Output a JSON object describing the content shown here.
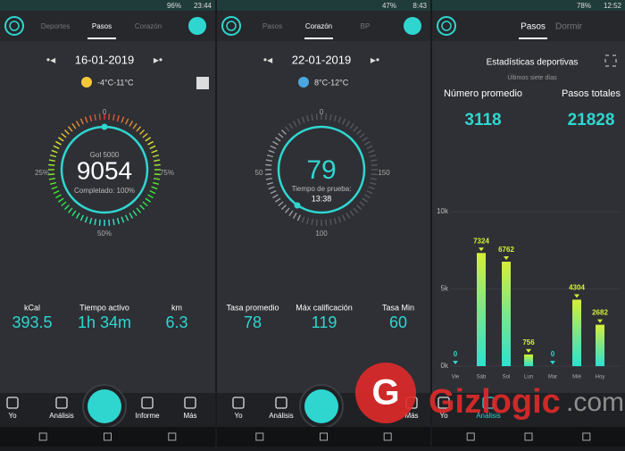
{
  "screens": [
    {
      "status": {
        "battery": "96%",
        "time": "23:44"
      },
      "tabs": [
        "Deportes",
        "Pasos",
        "Corazón"
      ],
      "date": "16-01-2019",
      "weather": "-4°C-11°C",
      "dial": {
        "labels": [
          "0",
          "25%",
          "75%",
          "50%"
        ],
        "top": "Gol 5000",
        "value": "9054",
        "bottom": "Completado: 100%"
      },
      "stats": [
        {
          "label": "kCal",
          "value": "393.5"
        },
        {
          "label": "Tiempo activo",
          "value": "1h 34m"
        },
        {
          "label": "km",
          "value": "6.3"
        }
      ],
      "nav": [
        "Yo",
        "Análisis",
        "Informe",
        "Más"
      ]
    },
    {
      "status": {
        "battery": "47%",
        "time": "8:43"
      },
      "tabs": [
        "Pasos",
        "Corazón",
        "BP"
      ],
      "date": "22-01-2019",
      "weather": "8°C-12°C",
      "dial": {
        "labels": [
          "0",
          "50",
          "150",
          "100"
        ],
        "value": "79",
        "top": "Tiempo de prueba:",
        "bottom": "13:38"
      },
      "stats": [
        {
          "label": "Tasa promedio",
          "value": "78"
        },
        {
          "label": "Máx calificación",
          "value": "119"
        },
        {
          "label": "Tasa Min",
          "value": "60"
        }
      ],
      "nav": [
        "Yo",
        "Análisis",
        "Más"
      ]
    },
    {
      "status": {
        "battery": "78%",
        "time": "12:52"
      },
      "tabs": [
        "Pasos",
        "Dormir"
      ],
      "title": "Estadísticas deportivas",
      "subtitle": "Últimos siete días",
      "stats": [
        {
          "label": "Número promedio",
          "value": "3118"
        },
        {
          "label": "Pasos totales",
          "value": "21828"
        }
      ],
      "nav": [
        "Yo",
        "Análisis"
      ]
    }
  ],
  "chart_data": {
    "type": "bar",
    "categories": [
      "Vie",
      "Sáb",
      "Sol",
      "Lun",
      "Mar",
      "Mié",
      "Hoy"
    ],
    "values": [
      0,
      7324,
      6762,
      756,
      0,
      4304,
      2682
    ],
    "ylim": [
      0,
      10000
    ],
    "yticks": [
      {
        "value": 0,
        "label": "0k"
      },
      {
        "value": 5000,
        "label": "5k"
      },
      {
        "value": 10000,
        "label": "10k"
      }
    ]
  },
  "watermark": {
    "name": "Gizlogic",
    "domain": ".com"
  }
}
